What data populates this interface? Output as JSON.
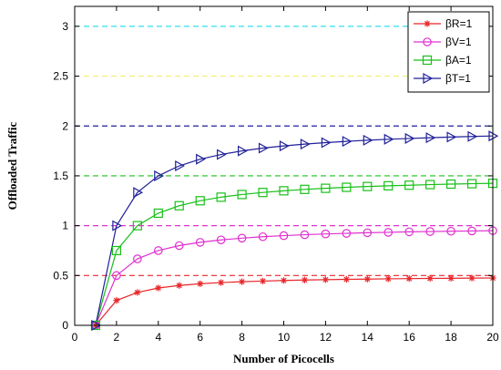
{
  "chart_data": {
    "type": "line",
    "title": "",
    "xlabel": "Number of Picocells",
    "ylabel": "Offloaded Traffic",
    "xlim": [
      0,
      20
    ],
    "ylim": [
      0,
      3.2
    ],
    "xticks": [
      0,
      2,
      4,
      6,
      8,
      10,
      12,
      14,
      16,
      18,
      20
    ],
    "yticks": [
      0,
      0.5,
      1,
      1.5,
      2,
      2.5,
      3
    ],
    "xtick_labels": [
      "0",
      "2",
      "4",
      "6",
      "8",
      "10",
      "12",
      "14",
      "16",
      "18",
      "20"
    ],
    "ytick_labels": [
      "0",
      "0.5",
      "1",
      "1.5",
      "2",
      "2.5",
      "3"
    ],
    "grid": false,
    "legend_position": "top-right",
    "x": [
      1,
      2,
      3,
      4,
      5,
      6,
      7,
      8,
      9,
      10,
      11,
      12,
      13,
      14,
      15,
      16,
      17,
      18,
      19,
      20
    ],
    "series": [
      {
        "name": "βR=1",
        "color": "#e8262a",
        "marker": "asterisk",
        "values": [
          0,
          0.25,
          0.33,
          0.375,
          0.4,
          0.417,
          0.429,
          0.4375,
          0.444,
          0.45,
          0.455,
          0.458,
          0.462,
          0.464,
          0.467,
          0.469,
          0.471,
          0.472,
          0.474,
          0.475
        ]
      },
      {
        "name": "βV=1",
        "color": "#e030d0",
        "marker": "circle",
        "values": [
          0,
          0.5,
          0.667,
          0.75,
          0.8,
          0.833,
          0.857,
          0.875,
          0.889,
          0.9,
          0.909,
          0.917,
          0.923,
          0.929,
          0.933,
          0.938,
          0.941,
          0.944,
          0.947,
          0.95
        ]
      },
      {
        "name": "βA=1",
        "color": "#18c018",
        "marker": "square",
        "values": [
          0,
          0.75,
          1.0,
          1.125,
          1.2,
          1.25,
          1.286,
          1.3125,
          1.333,
          1.35,
          1.364,
          1.375,
          1.385,
          1.393,
          1.4,
          1.406,
          1.412,
          1.417,
          1.421,
          1.425
        ]
      },
      {
        "name": "βT=1",
        "color": "#20209a",
        "marker": "triangle-right",
        "values": [
          0,
          1.0,
          1.333,
          1.5,
          1.6,
          1.667,
          1.714,
          1.75,
          1.778,
          1.8,
          1.818,
          1.833,
          1.846,
          1.857,
          1.867,
          1.875,
          1.882,
          1.889,
          1.895,
          1.9
        ]
      }
    ],
    "reference_lines": [
      {
        "y": 0.5,
        "color": "#e8262a",
        "style": "dashed"
      },
      {
        "y": 1.0,
        "color": "#e030d0",
        "style": "dashed"
      },
      {
        "y": 1.5,
        "color": "#18c018",
        "style": "dashed"
      },
      {
        "y": 2.0,
        "color": "#20209a",
        "style": "dashed"
      },
      {
        "y": 2.5,
        "color": "#f0f070",
        "style": "dashed"
      },
      {
        "y": 3.0,
        "color": "#30e0f0",
        "style": "dashed"
      }
    ]
  }
}
